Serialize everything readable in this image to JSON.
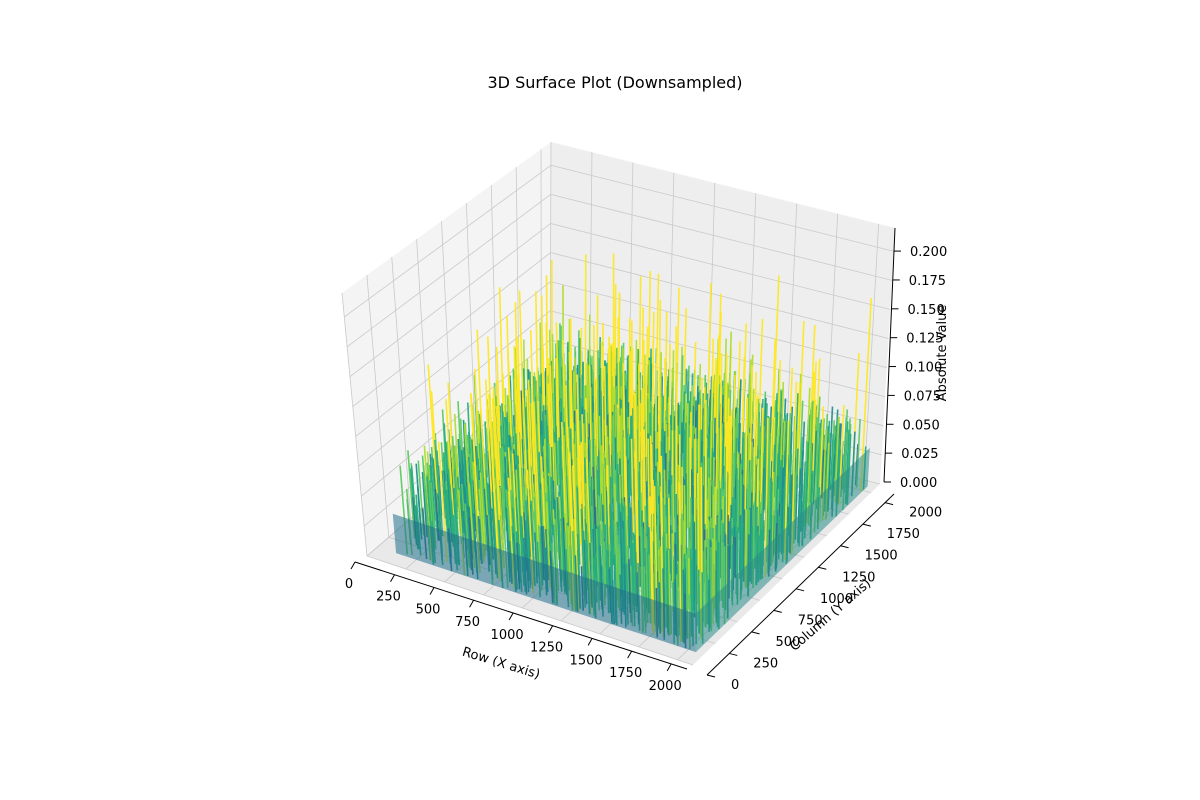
{
  "chart_data": {
    "type": "surface3d",
    "title": "3D Surface Plot (Downsampled)",
    "xlabel": "Row (X axis)",
    "ylabel": "Column (Y axis)",
    "zlabel": "Absolute Value",
    "xlim": [
      0,
      2100
    ],
    "ylim": [
      0,
      2100
    ],
    "zlim": [
      0,
      0.22
    ],
    "x_ticks": [
      "0",
      "250",
      "500",
      "750",
      "1000",
      "1250",
      "1500",
      "1750",
      "2000"
    ],
    "y_ticks": [
      "0",
      "250",
      "500",
      "750",
      "1000",
      "1250",
      "1500",
      "1750",
      "2000"
    ],
    "z_ticks": [
      "0.000",
      "0.025",
      "0.050",
      "0.075",
      "0.100",
      "0.125",
      "0.150",
      "0.175",
      "0.200"
    ],
    "colormap": "viridis",
    "grid": true,
    "value_range_observed": [
      0,
      0.21
    ]
  }
}
